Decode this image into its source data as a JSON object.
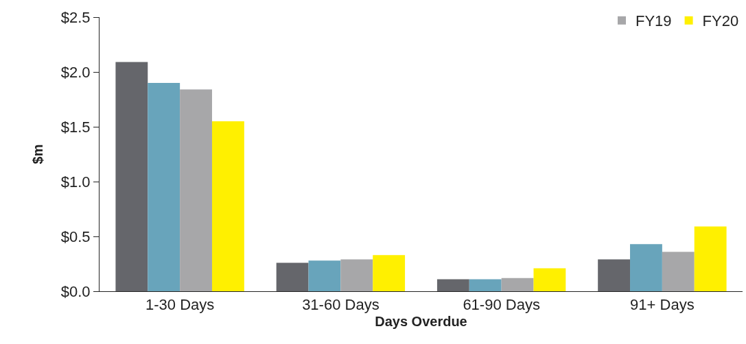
{
  "chart_data": {
    "type": "bar",
    "xlabel": "Days Overdue",
    "ylabel": "$m",
    "categories": [
      "1-30 Days",
      "31-60 Days",
      "61-90 Days",
      "91+ Days"
    ],
    "series": [
      {
        "color": "#65666b",
        "values": [
          2.09,
          0.26,
          0.11,
          0.29
        ]
      },
      {
        "color": "#68a4bb",
        "values": [
          1.9,
          0.28,
          0.11,
          0.43
        ]
      },
      {
        "name": "FY19",
        "color": "#a7a7a9",
        "values": [
          1.84,
          0.29,
          0.12,
          0.36
        ]
      },
      {
        "name": "FY20",
        "color": "#fff000",
        "values": [
          1.55,
          0.33,
          0.21,
          0.59
        ]
      }
    ],
    "ylim": [
      0,
      2.5
    ],
    "yticks": [
      {
        "value": 0,
        "label": "$0.0"
      },
      {
        "value": 0.5,
        "label": "$0.5"
      },
      {
        "value": 1,
        "label": "$1.0"
      },
      {
        "value": 1.5,
        "label": "$1.5"
      },
      {
        "value": 2,
        "label": "$2.0"
      },
      {
        "value": 2.5,
        "label": "$2.5"
      }
    ],
    "legend": "top right"
  }
}
